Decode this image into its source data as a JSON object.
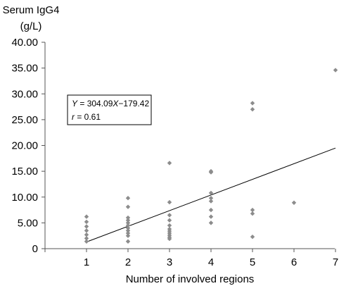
{
  "chart_data": {
    "type": "scatter",
    "ylabel_lines": [
      "Serum IgG4",
      "(g/L)"
    ],
    "xlabel": "Number of involved regions",
    "x_ticks": [
      "1",
      "2",
      "3",
      "4",
      "5",
      "6",
      "7"
    ],
    "y_ticks": [
      "0",
      "5.00",
      "10.00",
      "15.00",
      "20.00",
      "25.00",
      "30.00",
      "35.00",
      "40.00"
    ],
    "xlim": [
      0,
      7
    ],
    "ylim": [
      0,
      40
    ],
    "points": [
      [
        1,
        6.2
      ],
      [
        1,
        5.2
      ],
      [
        1,
        4.3
      ],
      [
        1,
        3.5
      ],
      [
        1,
        2.7
      ],
      [
        1,
        2.0
      ],
      [
        1,
        1.4
      ],
      [
        2,
        9.8
      ],
      [
        2,
        8.1
      ],
      [
        2,
        6.0
      ],
      [
        2,
        5.5
      ],
      [
        2,
        5.0
      ],
      [
        2,
        4.5
      ],
      [
        2,
        4.0
      ],
      [
        2,
        3.5
      ],
      [
        2,
        3.0
      ],
      [
        2,
        2.5
      ],
      [
        2,
        1.4
      ],
      [
        3,
        16.6
      ],
      [
        3,
        9.0
      ],
      [
        3,
        6.5
      ],
      [
        3,
        5.5
      ],
      [
        3,
        4.5
      ],
      [
        3,
        3.8
      ],
      [
        3,
        3.4
      ],
      [
        3,
        3.0
      ],
      [
        3,
        2.6
      ],
      [
        3,
        2.2
      ],
      [
        3,
        1.9
      ],
      [
        4,
        15.0
      ],
      [
        4,
        14.8
      ],
      [
        4,
        10.8
      ],
      [
        4,
        9.8
      ],
      [
        4,
        9.2
      ],
      [
        4,
        7.5
      ],
      [
        4,
        6.2
      ],
      [
        4,
        5.0
      ],
      [
        5,
        28.2
      ],
      [
        5,
        27.0
      ],
      [
        5,
        7.5
      ],
      [
        5,
        6.8
      ],
      [
        5,
        2.3
      ],
      [
        6,
        8.9
      ],
      [
        7,
        34.6
      ]
    ],
    "fit": {
      "slope": 304.09,
      "intercept": -179.42,
      "from": [
        1,
        1.3
      ],
      "to": [
        7,
        19.5
      ]
    },
    "annotation": {
      "line1_var": "Y",
      "line1_rest": " = 304.09",
      "line1_var2": "X",
      "line1_end": "−179.42",
      "line2_var": "r",
      "line2_rest": " = 0.61"
    },
    "point_color": "#8c8c8c"
  }
}
